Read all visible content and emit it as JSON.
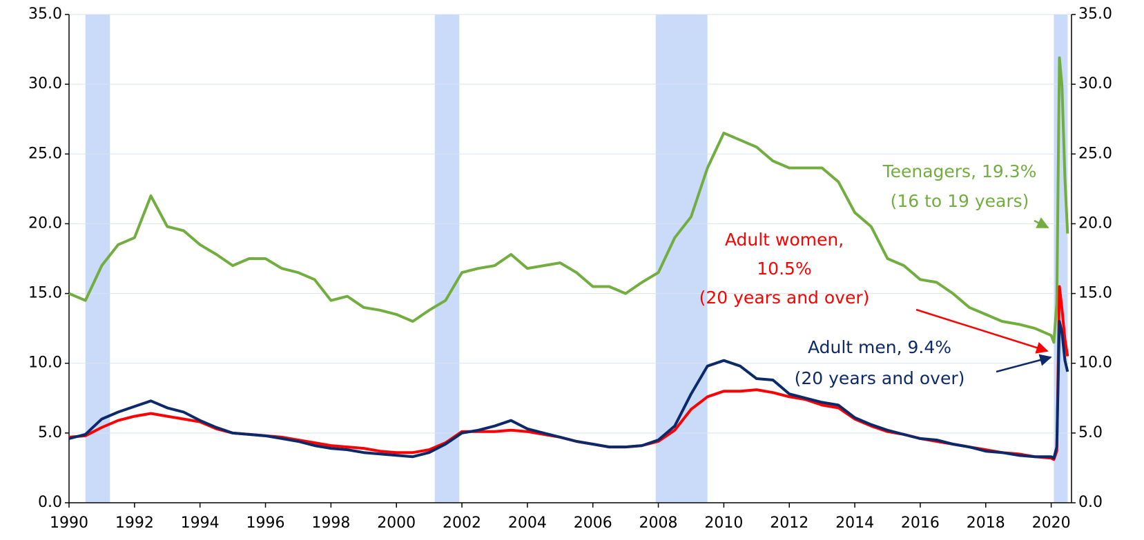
{
  "chart_data": {
    "type": "line",
    "x": [
      1990,
      1990.5,
      1991,
      1991.5,
      1992,
      1992.5,
      1993,
      1993.5,
      1994,
      1994.5,
      1995,
      1995.5,
      1996,
      1996.5,
      1997,
      1997.5,
      1998,
      1998.5,
      1999,
      1999.5,
      2000,
      2000.5,
      2001,
      2001.5,
      2002,
      2002.5,
      2003,
      2003.5,
      2004,
      2004.5,
      2005,
      2005.5,
      2006,
      2006.5,
      2007,
      2007.5,
      2008,
      2008.5,
      2009,
      2009.5,
      2010,
      2010.5,
      2011,
      2011.5,
      2012,
      2012.5,
      2013,
      2013.5,
      2014,
      2014.5,
      2015,
      2015.5,
      2016,
      2016.5,
      2017,
      2017.5,
      2018,
      2018.5,
      2019,
      2019.5,
      2020,
      2020.08,
      2020.17,
      2020.25,
      2020.33,
      2020.42,
      2020.5
    ],
    "series": [
      {
        "name": "Teenagers",
        "color": "#72ad3f",
        "values": [
          15.0,
          14.5,
          17.0,
          18.5,
          19.0,
          22.0,
          19.8,
          19.5,
          18.5,
          17.8,
          17.0,
          17.5,
          17.5,
          16.8,
          16.5,
          16.0,
          14.5,
          14.8,
          14.0,
          13.8,
          13.5,
          13.0,
          13.8,
          14.5,
          16.5,
          16.8,
          17.0,
          17.8,
          16.8,
          17.0,
          17.2,
          16.5,
          15.5,
          15.5,
          15.0,
          15.8,
          16.5,
          19.0,
          20.5,
          24.0,
          26.5,
          26.0,
          25.5,
          24.5,
          24.0,
          24.0,
          24.0,
          23.0,
          20.8,
          19.8,
          17.5,
          17.0,
          16.0,
          15.8,
          15.0,
          14.0,
          13.5,
          13.0,
          12.8,
          12.5,
          12.0,
          11.5,
          14.3,
          31.9,
          29.9,
          23.2,
          19.3
        ]
      },
      {
        "name": "Adult women",
        "color": "#ff0000",
        "values": [
          4.7,
          4.8,
          5.4,
          5.9,
          6.2,
          6.4,
          6.2,
          6.0,
          5.8,
          5.3,
          5.0,
          4.9,
          4.8,
          4.7,
          4.5,
          4.3,
          4.1,
          4.0,
          3.9,
          3.7,
          3.6,
          3.6,
          3.8,
          4.3,
          5.1,
          5.1,
          5.1,
          5.2,
          5.1,
          4.9,
          4.7,
          4.4,
          4.2,
          4.0,
          4.0,
          4.1,
          4.4,
          5.2,
          6.7,
          7.6,
          8.0,
          8.0,
          8.1,
          7.9,
          7.6,
          7.4,
          7.0,
          6.8,
          6.0,
          5.5,
          5.1,
          4.9,
          4.6,
          4.4,
          4.2,
          4.0,
          3.8,
          3.6,
          3.5,
          3.3,
          3.2,
          3.1,
          3.7,
          15.5,
          13.9,
          11.7,
          10.5
        ]
      },
      {
        "name": "Adult men",
        "color": "#0c2a6a",
        "values": [
          4.6,
          4.9,
          6.0,
          6.5,
          6.9,
          7.3,
          6.8,
          6.5,
          5.9,
          5.4,
          5.0,
          4.9,
          4.8,
          4.6,
          4.4,
          4.1,
          3.9,
          3.8,
          3.6,
          3.5,
          3.4,
          3.3,
          3.6,
          4.2,
          5.0,
          5.2,
          5.5,
          5.9,
          5.3,
          5.0,
          4.7,
          4.4,
          4.2,
          4.0,
          4.0,
          4.1,
          4.5,
          5.5,
          7.8,
          9.8,
          10.2,
          9.8,
          8.9,
          8.8,
          7.8,
          7.5,
          7.2,
          7.0,
          6.1,
          5.6,
          5.2,
          4.9,
          4.6,
          4.5,
          4.2,
          4.0,
          3.7,
          3.6,
          3.4,
          3.3,
          3.3,
          3.2,
          4.0,
          13.0,
          12.2,
          10.2,
          9.4
        ]
      }
    ],
    "recessions": [
      [
        1990.5,
        1991.25
      ],
      [
        2001.17,
        2001.92
      ],
      [
        2007.92,
        2009.5
      ],
      [
        2020.08,
        2020.5
      ]
    ],
    "recession_color": "#c9dbf9",
    "xlim": [
      1990,
      2020.62
    ],
    "xticks": [
      1990,
      1992,
      1994,
      1996,
      1998,
      2000,
      2002,
      2004,
      2006,
      2008,
      2010,
      2012,
      2014,
      2016,
      2018,
      2020
    ],
    "ylim": [
      0,
      35
    ],
    "yticks": [
      {
        "value": 0,
        "label": "0.0"
      },
      {
        "value": 5,
        "label": "5.0"
      },
      {
        "value": 10,
        "label": "10.0"
      },
      {
        "value": 15,
        "label": "15.0"
      },
      {
        "value": 20,
        "label": "20.0"
      },
      {
        "value": 25,
        "label": "25.0"
      },
      {
        "value": 30,
        "label": "30.0"
      },
      {
        "value": 35,
        "label": "35.0"
      }
    ],
    "y2lim": [
      0,
      35
    ],
    "y2ticks": [
      {
        "value": 0,
        "label": "0.0"
      },
      {
        "value": 5,
        "label": "5.0"
      },
      {
        "value": 10,
        "label": "10.0"
      },
      {
        "value": 15,
        "label": "15.0"
      },
      {
        "value": 20,
        "label": "20.0"
      },
      {
        "value": 25,
        "label": "25.0"
      },
      {
        "value": 30,
        "label": "30.0"
      },
      {
        "value": 35,
        "label": "35.0"
      }
    ],
    "grid": true,
    "annotations": [
      {
        "lines": [
          "Teenagers, 19.3%",
          "(16 to 19 years)"
        ],
        "color": "#72ad3f"
      },
      {
        "lines": [
          "Adult women,",
          "10.5%",
          "(20 years and over)"
        ],
        "color": "#ff0000"
      },
      {
        "lines": [
          "Adult men, 9.4%",
          "(20 years and over)"
        ],
        "color": "#0c2a6a"
      }
    ]
  }
}
